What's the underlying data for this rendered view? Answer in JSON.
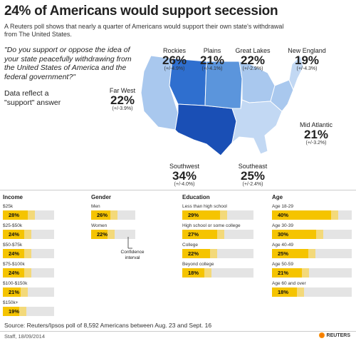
{
  "header": {
    "title": "24% of Americans would support secession",
    "subtitle": "A Reuters poll shows that nearly a quarter of Americans would support their own state's withdrawal from The United States."
  },
  "question": "\"Do you support or oppose the idea of your state peacefully withdrawing from the United States of America and the federal government?\"",
  "reflect_note": "Data reflect a \"support\" answer",
  "colors": {
    "bar": "#f5c400",
    "ci": "#f3d97a",
    "track": "#e4e4e4",
    "map_light": "#a9c8ee",
    "map_mid": "#5b95dc",
    "map_dark": "#2f6fcf",
    "map_darkest": "#1a4fb5"
  },
  "regions": [
    {
      "name": "Rockies",
      "pct": "26%",
      "moe": "(+/-4.9%)"
    },
    {
      "name": "Plains",
      "pct": "21%",
      "moe": "(+/-4.1%)"
    },
    {
      "name": "Great Lakes",
      "pct": "22%",
      "moe": "(+/-2.9%)"
    },
    {
      "name": "New England",
      "pct": "19%",
      "moe": "(+/-4.3%)"
    },
    {
      "name": "Far West",
      "pct": "22%",
      "moe": "(+/-3.9%)"
    },
    {
      "name": "Mid Atlantic",
      "pct": "21%",
      "moe": "(+/-3.2%)"
    },
    {
      "name": "Southwest",
      "pct": "34%",
      "moe": "(+/-4.0%)"
    },
    {
      "name": "Southeast",
      "pct": "25%",
      "moe": "(+/-2.4%)"
    }
  ],
  "chart_data": {
    "type": "bar",
    "groups": [
      {
        "name": "Income",
        "categories": [
          "$25k",
          "$25-$50k",
          "$50-$75k",
          "$75-$100k",
          "$100-$150k",
          "$150k+"
        ],
        "values": [
          28,
          24,
          24,
          24,
          21,
          19
        ]
      },
      {
        "name": "Gender",
        "categories": [
          "Men",
          "Women"
        ],
        "values": [
          26,
          22
        ]
      },
      {
        "name": "Education",
        "categories": [
          "Less than high school",
          "High school or some college",
          "College",
          "Beyond college"
        ],
        "values": [
          29,
          27,
          22,
          18
        ]
      },
      {
        "name": "Age",
        "categories": [
          "Age 18-29",
          "Age 30-39",
          "Age 40-49",
          "Age 50-59",
          "Age 60 and over"
        ],
        "values": [
          40,
          30,
          25,
          21,
          18
        ]
      }
    ],
    "ci_label": "Confidence interval"
  },
  "source": "Source: Reuters/Ipsos poll of 8,592 Americans between Aug. 23 and Sept. 16",
  "credit": "Staff, 18/09/2014",
  "logo_text": "REUTERS"
}
